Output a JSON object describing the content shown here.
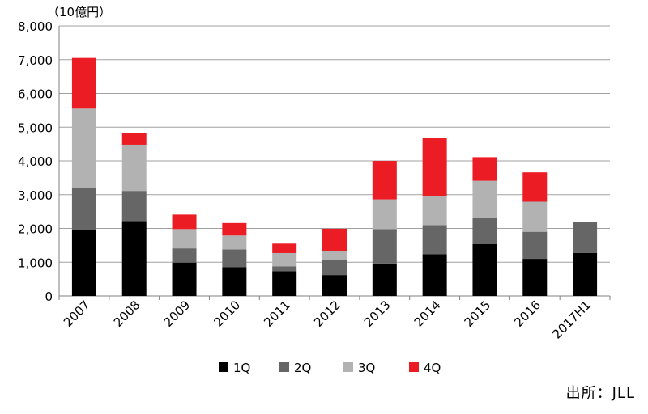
{
  "chart_data": {
    "type": "bar",
    "stacked": true,
    "unit_label": "（10億円）",
    "source": "出所：JLL",
    "categories": [
      "2007",
      "2008",
      "2009",
      "2010",
      "2011",
      "2012",
      "2013",
      "2014",
      "2015",
      "2016",
      "2017H1"
    ],
    "series": [
      {
        "name": "1Q",
        "color": "#000000",
        "values": [
          1950,
          2220,
          990,
          850,
          730,
          620,
          960,
          1240,
          1540,
          1100,
          1270
        ]
      },
      {
        "name": "2Q",
        "color": "#666666",
        "values": [
          1240,
          890,
          420,
          530,
          150,
          450,
          1020,
          860,
          770,
          800,
          920
        ]
      },
      {
        "name": "3Q",
        "color": "#b2b2b2",
        "values": [
          2360,
          1370,
          570,
          410,
          390,
          270,
          880,
          860,
          1100,
          890,
          0
        ]
      },
      {
        "name": "4Q",
        "color": "#ec1c24",
        "values": [
          1500,
          350,
          430,
          370,
          280,
          650,
          1140,
          1710,
          700,
          870,
          0
        ]
      }
    ],
    "ylim": [
      0,
      8000
    ],
    "yticks": [
      "0",
      "1,000",
      "2,000",
      "3,000",
      "4,000",
      "5,000",
      "6,000",
      "7,000",
      "8,000"
    ],
    "grid": true,
    "legend_position": "bottom"
  }
}
